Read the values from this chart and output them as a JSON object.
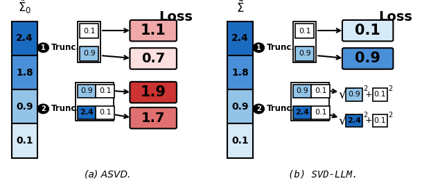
{
  "title_a": "(a) ASVD.",
  "title_b": "(b) SVD-LLM.",
  "sigma_label_a": "$\\tilde{\\Sigma}_0$",
  "sigma_label_b": "$\\tilde{\\Sigma}$",
  "loss_label": "Loss",
  "sigma_values": [
    "2.4",
    "1.8",
    "0.9",
    "0.1"
  ],
  "blue_dark": "#1a6bbf",
  "blue_mid": "#4a90d9",
  "blue_light": "#93c4e8",
  "blue_vlight": "#d6eaf8",
  "red_dark": "#cc3333",
  "red_mid": "#e07070",
  "red_light": "#f0a8a8",
  "red_vlight": "#fce0e0",
  "white": "#ffffff"
}
